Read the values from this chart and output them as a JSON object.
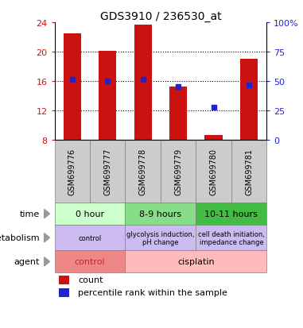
{
  "title": "GDS3910 / 236530_at",
  "samples": [
    "GSM699776",
    "GSM699777",
    "GSM699778",
    "GSM699779",
    "GSM699780",
    "GSM699781"
  ],
  "bar_values": [
    22.5,
    20.1,
    23.7,
    15.3,
    8.7,
    19.0
  ],
  "bar_bottom": 8,
  "blue_values": [
    16.2,
    16.0,
    16.2,
    15.3,
    12.5,
    15.5
  ],
  "bar_color": "#cc1111",
  "blue_color": "#2222cc",
  "ylim": [
    8,
    24
  ],
  "yticks_left": [
    8,
    12,
    16,
    20,
    24
  ],
  "yticks_right": [
    0,
    25,
    50,
    75,
    100
  ],
  "time_labels": [
    "0 hour",
    "8-9 hours",
    "10-11 hours"
  ],
  "time_colors": [
    "#ccffcc",
    "#88dd88",
    "#44bb44"
  ],
  "metabolism_labels": [
    "control",
    "glycolysis induction,\npH change",
    "cell death initiation,\nimpedance change"
  ],
  "metabolism_color": "#ccbbee",
  "agent_labels": [
    "control",
    "cisplatin"
  ],
  "agent_colors": [
    "#ee8888",
    "#ffbbbb"
  ],
  "row_labels": [
    "time",
    "metabolism",
    "agent"
  ],
  "legend_count_color": "#cc1111",
  "legend_blue_color": "#2222cc",
  "bg_color": "#ffffff",
  "sample_bg": "#cccccc",
  "bar_width": 0.5
}
